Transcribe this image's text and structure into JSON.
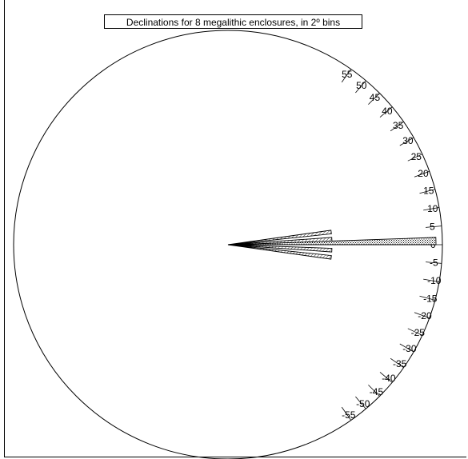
{
  "chart_data": {
    "type": "rose",
    "title": "Declinations for 8 megalithic enclosures, in 2º bins",
    "bin_width_deg": 2,
    "axis_labels": [
      55,
      50,
      45,
      40,
      35,
      30,
      25,
      20,
      15,
      10,
      5,
      0,
      -5,
      -10,
      -15,
      -20,
      -25,
      -30,
      -35,
      -40,
      -45,
      -50,
      -55
    ],
    "axis_range_deg": [
      -57,
      57
    ],
    "max_count": 2,
    "bins": [
      {
        "from": 6,
        "to": 8,
        "count": 1,
        "fill": "hatched"
      },
      {
        "from": 0,
        "to": 2,
        "count": 2,
        "fill": "dotted"
      },
      {
        "from": 2,
        "to": 4,
        "count": 1,
        "fill": "hatched"
      },
      {
        "from": -4,
        "to": -2,
        "count": 1,
        "fill": "hatched"
      },
      {
        "from": -8,
        "to": -6,
        "count": 1,
        "fill": "hatched"
      }
    ],
    "colors": {
      "line": "#000000",
      "fill": "#ffffff",
      "pattern": "#000000"
    }
  }
}
